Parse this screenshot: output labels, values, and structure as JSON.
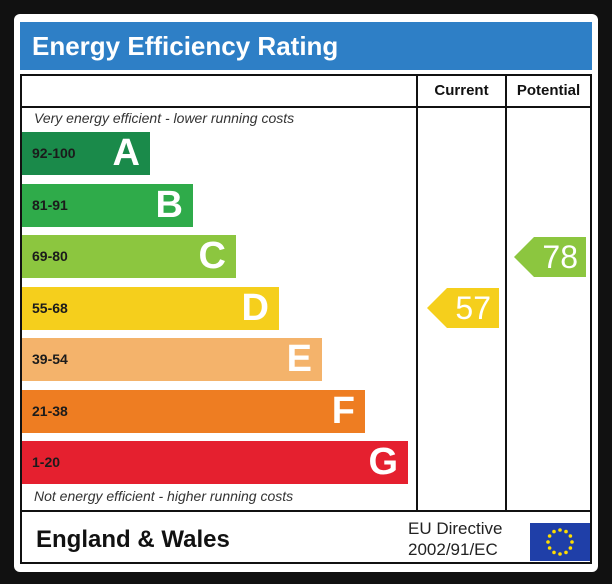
{
  "title": "Energy Efficiency Rating",
  "columns": {
    "current": "Current",
    "potential": "Potential"
  },
  "notes": {
    "top": "Very energy efficient - lower running costs",
    "bottom": "Not energy efficient - higher running costs"
  },
  "footer": {
    "region": "England & Wales",
    "directive_line1": "EU Directive",
    "directive_line2": "2002/91/EC",
    "flag_icon": "eu-flag-icon"
  },
  "chart_data": {
    "type": "bar",
    "categories": [
      "A",
      "B",
      "C",
      "D",
      "E",
      "F",
      "G"
    ],
    "ranges": [
      "92-100",
      "81-91",
      "69-80",
      "55-68",
      "39-54",
      "21-38",
      "1-20"
    ],
    "colors": [
      "#1a8a4a",
      "#2fab4a",
      "#8cc63f",
      "#f5cf1c",
      "#f4b36b",
      "#ee7d22",
      "#e5202f"
    ],
    "current": {
      "value": 57,
      "band": "D"
    },
    "potential": {
      "value": 78,
      "band": "C"
    }
  }
}
